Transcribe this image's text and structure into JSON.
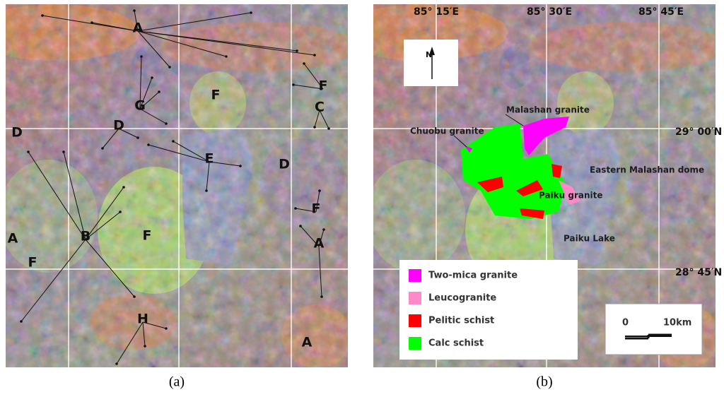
{
  "panel_a": {
    "caption": "(a)",
    "labels": [
      "A",
      "G",
      "F",
      "F",
      "C",
      "D",
      "D",
      "E",
      "D",
      "F",
      "A",
      "B",
      "F",
      "A",
      "F",
      "H",
      "A"
    ]
  },
  "panel_b": {
    "caption": "(b)",
    "north": "N",
    "coords": [
      "85° 15′E",
      "85° 30′E",
      "85° 45′E",
      "29° 00′N",
      "28° 45′N"
    ],
    "labels": [
      "Malashan granite",
      "Chuobu granite",
      "Eastern Malashan dome",
      "Paiku granite",
      "Paiku Lake"
    ],
    "legend": [
      {
        "name": "Two-mica granite",
        "color": "#ff00ff"
      },
      {
        "name": "Leucogranite",
        "color": "#ff88c8"
      },
      {
        "name": "Pelitic schist",
        "color": "#ff0000"
      },
      {
        "name": "Calc schist",
        "color": "#00ff00"
      }
    ],
    "scale": [
      "0",
      "10km"
    ]
  }
}
